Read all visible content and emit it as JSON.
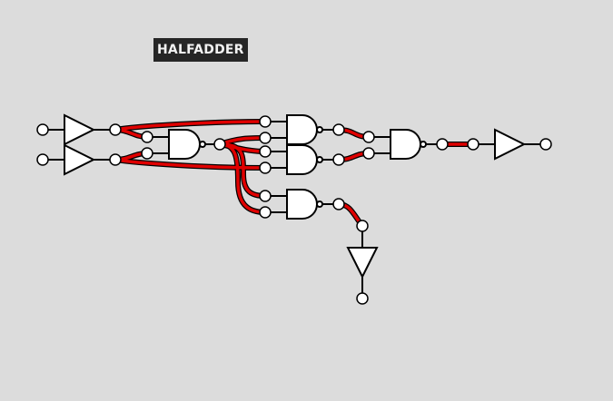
{
  "circuit": {
    "title": "HALFADDER",
    "colors": {
      "background": "#dcdcdc",
      "active_wire": "#e00000",
      "wire_outline": "#000000",
      "gate_fill": "#ffffff",
      "title_bg": "#262626",
      "title_text": "#f2f2f2"
    },
    "components": [
      {
        "id": "input-buffer-a",
        "type": "buffer"
      },
      {
        "id": "input-buffer-b",
        "type": "buffer"
      },
      {
        "id": "nand-gate-1",
        "type": "nand"
      },
      {
        "id": "nand-gate-2",
        "type": "nand"
      },
      {
        "id": "nand-gate-3",
        "type": "nand"
      },
      {
        "id": "nand-gate-4",
        "type": "nand"
      },
      {
        "id": "nand-gate-5",
        "type": "nand"
      },
      {
        "id": "sum-output-buffer",
        "type": "buffer"
      },
      {
        "id": "carry-output-buffer",
        "type": "buffer"
      }
    ]
  }
}
